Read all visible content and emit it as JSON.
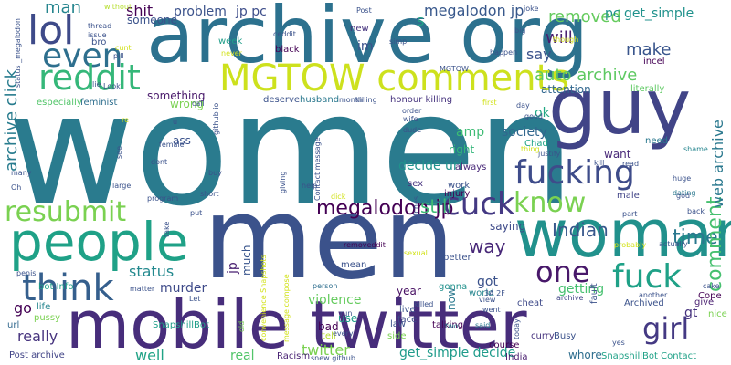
{
  "word_cloud": {
    "words": [
      {
        "text": "women",
        "color": "#2a7b8e"
      },
      {
        "text": "men",
        "color": "#3b528b"
      },
      {
        "text": "archive org",
        "color": "#2c718e"
      },
      {
        "text": "mobile twitter",
        "color": "#472d7b"
      },
      {
        "text": "guy",
        "color": "#414487"
      },
      {
        "text": "woman",
        "color": "#21918c"
      },
      {
        "text": "people",
        "color": "#1fa187"
      },
      {
        "text": "MGTOW comments",
        "color": "#cde11d"
      },
      {
        "text": "lol",
        "color": "#3e4a89"
      },
      {
        "text": "even",
        "color": "#2e6f8e"
      },
      {
        "text": "reddit",
        "color": "#35b779"
      },
      {
        "text": "fucking",
        "color": "#3e4c8a"
      },
      {
        "text": "cuck",
        "color": "#443983"
      },
      {
        "text": "know",
        "color": "#7ad151"
      },
      {
        "text": "fuck",
        "color": "#1fa187"
      },
      {
        "text": "think",
        "color": "#355f8d"
      },
      {
        "text": "resubmit",
        "color": "#7ad151"
      },
      {
        "text": "one",
        "color": "#48186a"
      },
      {
        "text": "girl",
        "color": "#443983"
      },
      {
        "text": "megalodon jp",
        "color": "#440154"
      },
      {
        "text": "auto archive",
        "color": "#5ec962"
      },
      {
        "text": "Indian",
        "color": "#38588c"
      },
      {
        "text": "time",
        "color": "#2a788e"
      },
      {
        "text": "comment",
        "color": "#46c06f"
      },
      {
        "text": "web archive",
        "color": "#2a788e"
      },
      {
        "text": "will",
        "color": "#481f70"
      },
      {
        "text": "removed",
        "color": "#65cb5e"
      },
      {
        "text": "pc get_simple",
        "color": "#20928c"
      },
      {
        "text": "_megalodon jp",
        "color": "#38588c"
      },
      {
        "text": "jp pc",
        "color": "#3d4d8a"
      },
      {
        "text": "shit",
        "color": "#440154"
      },
      {
        "text": "problem",
        "color": "#3b528b"
      },
      {
        "text": "man",
        "color": "#25858e"
      },
      {
        "text": "archive click",
        "color": "#287c8e"
      },
      {
        "text": "still",
        "color": "#3dbc74"
      },
      {
        "text": "way",
        "color": "#482878"
      },
      {
        "text": "decide url",
        "color": "#20928c"
      },
      {
        "text": "society",
        "color": "#31678e"
      },
      {
        "text": "status",
        "color": "#23898e"
      },
      {
        "text": "murder",
        "color": "#3e4a89"
      },
      {
        "text": "violence",
        "color": "#65cb5e"
      },
      {
        "text": "twitter",
        "color": "#7ad151"
      },
      {
        "text": "get_simple decide",
        "color": "#1e9b8a"
      },
      {
        "text": "go",
        "color": "#440154"
      },
      {
        "text": "really",
        "color": "#46337e"
      },
      {
        "text": "well",
        "color": "#20a386"
      },
      {
        "text": "real",
        "color": "#52c569"
      },
      {
        "text": "Racism",
        "color": "#482173"
      },
      {
        "text": "SnapshillBot",
        "color": "#1f9e89"
      },
      {
        "text": "Post archive",
        "color": "#414487"
      },
      {
        "text": "India",
        "color": "#481c6e"
      },
      {
        "text": "whore",
        "color": "#2e6e8e"
      },
      {
        "text": "SnapshillBot Contact",
        "color": "#1fa187"
      },
      {
        "text": "gt",
        "color": "#46327e"
      },
      {
        "text": "give",
        "color": "#481f70"
      },
      {
        "text": "amp",
        "color": "#3dbc74"
      },
      {
        "text": "right",
        "color": "#32b67a"
      },
      {
        "text": "ok",
        "color": "#22a884"
      },
      {
        "text": "make",
        "color": "#39558c"
      },
      {
        "text": "say",
        "color": "#3b528b"
      },
      {
        "text": "attention",
        "color": "#31678e"
      },
      {
        "text": "getting",
        "color": "#46c06f"
      },
      {
        "text": "got",
        "color": "#3b528b"
      },
      {
        "text": "saying",
        "color": "#3e4a89"
      },
      {
        "text": "want",
        "color": "#482878"
      },
      {
        "text": "s",
        "color": "#20a386"
      },
      {
        "text": "im",
        "color": "#3b528b"
      },
      {
        "text": "something",
        "color": "#48186a"
      },
      {
        "text": "wrong",
        "color": "#7ad151"
      },
      {
        "text": "ass",
        "color": "#3b528b"
      },
      {
        "text": "bot Info",
        "color": "#1f9e89"
      },
      {
        "text": "life",
        "color": "#25858e"
      },
      {
        "text": "pussy",
        "color": "#7ad151"
      },
      {
        "text": "url",
        "color": "#31688e"
      },
      {
        "text": "jp",
        "color": "#481f70"
      },
      {
        "text": "much",
        "color": "#39558c"
      },
      {
        "text": "year",
        "color": "#471063"
      },
      {
        "text": "use",
        "color": "#1f9e89"
      },
      {
        "text": "bad",
        "color": "#440154"
      },
      {
        "text": "tell",
        "color": "#b5de2b"
      },
      {
        "text": "mean",
        "color": "#3b528b"
      },
      {
        "text": "now",
        "color": "#2a788e"
      },
      {
        "text": "talking",
        "color": "#440154"
      },
      {
        "text": "world",
        "color": "#25858e"
      },
      {
        "text": "gonna",
        "color": "#21918c"
      },
      {
        "text": "black",
        "color": "#440154"
      },
      {
        "text": "bro",
        "color": "#3b528b"
      },
      {
        "text": "someone",
        "color": "#3b528b"
      },
      {
        "text": "new",
        "color": "#46337e"
      },
      {
        "text": "week",
        "color": "#1f9e89"
      },
      {
        "text": "without",
        "color": "#b5de2b"
      },
      {
        "text": "honour killing",
        "color": "#46337e"
      },
      {
        "text": "literally",
        "color": "#5ec962"
      },
      {
        "text": "incel",
        "color": "#440154"
      },
      {
        "text": "Archived",
        "color": "#3b528b"
      },
      {
        "text": "nice",
        "color": "#7ad151"
      },
      {
        "text": "Cope",
        "color": "#440154"
      },
      {
        "text": "shame",
        "color": "#25858e"
      },
      {
        "text": "need",
        "color": "#2a788e"
      },
      {
        "text": "dating",
        "color": "#2a788e"
      },
      {
        "text": "male",
        "color": "#414487"
      },
      {
        "text": "always",
        "color": "#482878"
      },
      {
        "text": "Chad",
        "color": "#20a386"
      },
      {
        "text": "sex",
        "color": "#46327e"
      },
      {
        "text": "work",
        "color": "#3b528b"
      },
      {
        "text": "injury",
        "color": "#440154"
      },
      {
        "text": "deserve",
        "color": "#3b528b"
      },
      {
        "text": "husband",
        "color": "#2a788e"
      },
      {
        "text": "feminist",
        "color": "#2e6e8e"
      },
      {
        "text": "especially",
        "color": "#52c569"
      },
      {
        "text": "wife",
        "color": "#3b528b"
      },
      {
        "text": "dude",
        "color": "#3b528b"
      },
      {
        "text": "removeddit",
        "color": "#440154"
      },
      {
        "text": "person",
        "color": "#2e6e8e"
      },
      {
        "text": "cheat",
        "color": "#3e4a89"
      },
      {
        "text": "archive",
        "color": "#414487"
      },
      {
        "text": "fault",
        "color": "#3b528b"
      },
      {
        "text": "Busy",
        "color": "#3b528b"
      },
      {
        "text": "course",
        "color": "#440154"
      },
      {
        "text": "curry",
        "color": "#46337e"
      },
      {
        "text": "law",
        "color": "#3b528b"
      },
      {
        "text": "side",
        "color": "#7ad151"
      },
      {
        "text": "two",
        "color": "#2a788e"
      },
      {
        "text": "said",
        "color": "#2a788e"
      },
      {
        "text": "today",
        "color": "#3b528b"
      },
      {
        "text": "face",
        "color": "#3e4a89"
      },
      {
        "text": "killed",
        "color": "#3b528b"
      },
      {
        "text": "live",
        "color": "#3b528b"
      },
      {
        "text": "better",
        "color": "#3b528b"
      },
      {
        "text": "view",
        "color": "#3b528b"
      },
      {
        "text": "went",
        "color": "#3b528b"
      },
      {
        "text": "killing",
        "color": "#3b528b"
      },
      {
        "text": "snew github",
        "color": "#3b528b"
      },
      {
        "text": "Let",
        "color": "#3b528b"
      },
      {
        "text": "every",
        "color": "#3b528b"
      },
      {
        "text": "old",
        "color": "#7ad151"
      },
      {
        "text": "matter",
        "color": "#3b528b"
      },
      {
        "text": "message compose",
        "color": "#d2e21b"
      },
      {
        "text": "convenience Snapshots",
        "color": "#d2e21b"
      },
      {
        "text": "Contact message",
        "color": "#3b528b"
      },
      {
        "text": "giving",
        "color": "#3b528b"
      },
      {
        "text": "help",
        "color": "#3b528b"
      },
      {
        "text": "dick",
        "color": "#d2e21b"
      },
      {
        "text": "bitches",
        "color": "#3b528b"
      },
      {
        "text": "sexual",
        "color": "#d2e21b"
      },
      {
        "text": "run",
        "color": "#3b528b"
      },
      {
        "text": "order",
        "color": "#3b528b"
      },
      {
        "text": "first",
        "color": "#d2e21b"
      },
      {
        "text": "day",
        "color": "#3b528b"
      },
      {
        "text": "good",
        "color": "#3b528b"
      },
      {
        "text": "thing",
        "color": "#d2e21b"
      },
      {
        "text": "justify",
        "color": "#3b528b"
      },
      {
        "text": "kill",
        "color": "#3b528b"
      },
      {
        "text": "read",
        "color": "#3b528b"
      },
      {
        "text": "huge",
        "color": "#3b528b"
      },
      {
        "text": "god",
        "color": "#3b528b"
      },
      {
        "text": "part",
        "color": "#3b528b"
      },
      {
        "text": "probably",
        "color": "#d2e21b"
      },
      {
        "text": "actually",
        "color": "#3b528b"
      },
      {
        "text": "back",
        "color": "#3b528b"
      },
      {
        "text": "another",
        "color": "#3b528b"
      },
      {
        "text": "yes",
        "color": "#3b528b"
      },
      {
        "text": "cake",
        "color": "#3b528b"
      },
      {
        "text": "3A 2F",
        "color": "#3b528b"
      },
      {
        "text": "program",
        "color": "#3b528b"
      },
      {
        "text": "short",
        "color": "#3b528b"
      },
      {
        "text": "put",
        "color": "#3b528b"
      },
      {
        "text": "large",
        "color": "#3b528b"
      },
      {
        "text": "buy",
        "color": "#3b528b"
      },
      {
        "text": "female",
        "color": "#3b528b"
      },
      {
        "text": "dont",
        "color": "#3b528b"
      },
      {
        "text": "see",
        "color": "#3b528b"
      },
      {
        "text": "many",
        "color": "#3b528b"
      },
      {
        "text": "Oh",
        "color": "#3b528b"
      },
      {
        "text": "penis",
        "color": "#3b528b"
      },
      {
        "text": "take",
        "color": "#3b528b"
      },
      {
        "text": "call",
        "color": "#3b528b"
      },
      {
        "text": "github io",
        "color": "#3b528b"
      },
      {
        "text": "u",
        "color": "#3b528b"
      },
      {
        "text": "re",
        "color": "#d2e21b"
      },
      {
        "text": "thread",
        "color": "#3b528b"
      },
      {
        "text": "issue",
        "color": "#3b528b"
      },
      {
        "text": "cunt",
        "color": "#d2e21b"
      },
      {
        "text": "pill",
        "color": "#3b528b"
      },
      {
        "text": "lie",
        "color": "#3b528b"
      },
      {
        "text": "Look",
        "color": "#3b528b"
      },
      {
        "text": "status _megalodon",
        "color": "#3b528b"
      },
      {
        "text": "ceddit",
        "color": "#3b528b"
      },
      {
        "text": "never",
        "color": "#d2e21b"
      },
      {
        "text": "Post",
        "color": "#3b528b"
      },
      {
        "text": "big",
        "color": "#3b528b"
      },
      {
        "text": "simp",
        "color": "#3b528b"
      },
      {
        "text": "joke",
        "color": "#3b528b"
      },
      {
        "text": "though",
        "color": "#d2e21b"
      },
      {
        "text": "happen",
        "color": "#3b528b"
      },
      {
        "text": "MGTOW",
        "color": "#3b528b"
      },
      {
        "text": "month",
        "color": "#3b528b"
      }
    ]
  }
}
